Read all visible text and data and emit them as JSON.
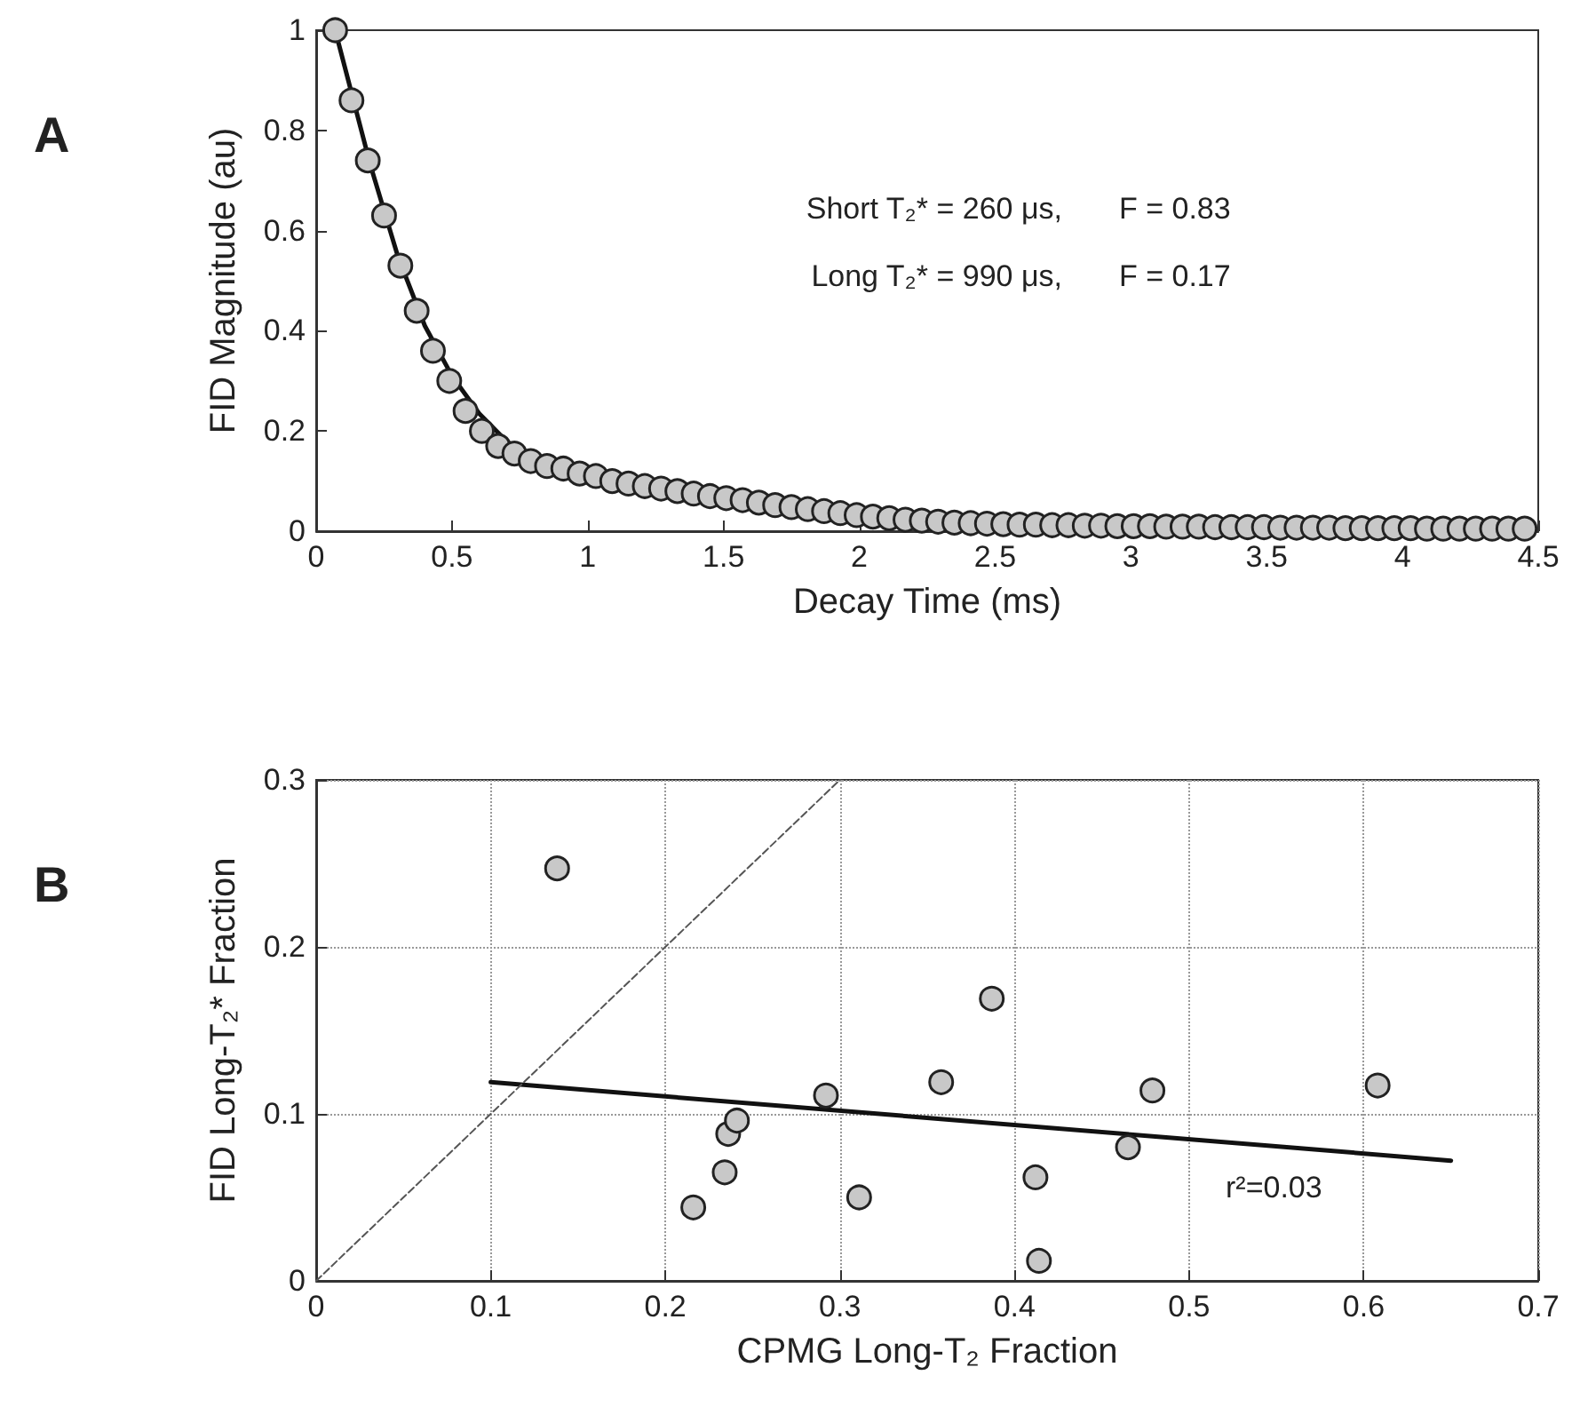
{
  "chart_data": [
    {
      "type": "scatter",
      "title": "A",
      "xlabel": "Decay Time (ms)",
      "ylabel": "FID Magnitude (au)",
      "xlim": [
        0,
        4.5
      ],
      "ylim": [
        0,
        1
      ],
      "xticks": [
        0,
        0.5,
        1,
        1.5,
        2,
        2.5,
        3,
        3.5,
        4,
        4.5
      ],
      "yticks": [
        0,
        0.2,
        0.4,
        0.6,
        0.8,
        1
      ],
      "grid": false,
      "annotations": [
        "Short T₂* = 260 μs,",
        "F = 0.83",
        "Long T₂* = 990 μs,",
        "F = 0.17"
      ],
      "series": [
        {
          "marker": "circle",
          "color": "#c8c8c8",
          "x": [
            0.07,
            0.13,
            0.19,
            0.25,
            0.31,
            0.37,
            0.43,
            0.49,
            0.55,
            0.61,
            0.67,
            0.73,
            0.79,
            0.85,
            0.91,
            0.97,
            1.03,
            1.09,
            1.15,
            1.21,
            1.27,
            1.33,
            1.39,
            1.45,
            1.51,
            1.57,
            1.63,
            1.69,
            1.75,
            1.81,
            1.87,
            1.93,
            1.99,
            2.05,
            2.11,
            2.17,
            2.23,
            2.29,
            2.35,
            2.41,
            2.47,
            2.53,
            2.59,
            2.65,
            2.71,
            2.77,
            2.83,
            2.89,
            2.95,
            3.01,
            3.07,
            3.13,
            3.19,
            3.25,
            3.31,
            3.37,
            3.43,
            3.49,
            3.55,
            3.61,
            3.67,
            3.73,
            3.79,
            3.85,
            3.91,
            3.97,
            4.03,
            4.09,
            4.15,
            4.21,
            4.27,
            4.33,
            4.39,
            4.45
          ],
          "values": [
            1.0,
            0.86,
            0.74,
            0.63,
            0.53,
            0.44,
            0.36,
            0.3,
            0.24,
            0.2,
            0.17,
            0.155,
            0.14,
            0.13,
            0.125,
            0.115,
            0.11,
            0.1,
            0.095,
            0.09,
            0.085,
            0.08,
            0.075,
            0.07,
            0.066,
            0.062,
            0.057,
            0.052,
            0.048,
            0.044,
            0.04,
            0.036,
            0.032,
            0.029,
            0.026,
            0.023,
            0.021,
            0.019,
            0.017,
            0.016,
            0.015,
            0.014,
            0.013,
            0.013,
            0.012,
            0.012,
            0.011,
            0.011,
            0.01,
            0.01,
            0.01,
            0.009,
            0.009,
            0.009,
            0.008,
            0.008,
            0.008,
            0.008,
            0.007,
            0.007,
            0.007,
            0.007,
            0.006,
            0.006,
            0.006,
            0.006,
            0.006,
            0.005,
            0.005,
            0.005,
            0.005,
            0.005,
            0.005,
            0.005
          ]
        },
        {
          "type": "line",
          "marker": "none",
          "color": "#111111",
          "line_style": "solid",
          "x": [
            0.07,
            0.2,
            0.3,
            0.4,
            0.5,
            0.6,
            0.7,
            0.8,
            0.9,
            1.0,
            1.2,
            1.5,
            2.0,
            2.5,
            3.0,
            3.5,
            4.0,
            4.45
          ],
          "values": [
            1.0,
            0.73,
            0.55,
            0.41,
            0.31,
            0.235,
            0.18,
            0.145,
            0.125,
            0.11,
            0.09,
            0.065,
            0.035,
            0.02,
            0.012,
            0.008,
            0.005,
            0.004
          ]
        }
      ]
    },
    {
      "type": "scatter",
      "title": "B",
      "xlabel": "CPMG Long-T₂ Fraction",
      "ylabel": "FID Long-T₂* Fraction",
      "xlim": [
        0,
        0.7
      ],
      "ylim": [
        0,
        0.3
      ],
      "xticks": [
        0,
        0.1,
        0.2,
        0.3,
        0.4,
        0.5,
        0.6,
        0.7
      ],
      "yticks": [
        0,
        0.1,
        0.2,
        0.3
      ],
      "grid": true,
      "annotations": [
        "r²=0.03"
      ],
      "series": [
        {
          "marker": "circle",
          "color": "#c8c8c8",
          "x": [
            0.138,
            0.216,
            0.234,
            0.236,
            0.241,
            0.292,
            0.311,
            0.358,
            0.387,
            0.412,
            0.414,
            0.465,
            0.479,
            0.608
          ],
          "values": [
            0.247,
            0.044,
            0.065,
            0.088,
            0.096,
            0.111,
            0.05,
            0.119,
            0.169,
            0.062,
            0.012,
            0.08,
            0.114,
            0.117
          ]
        },
        {
          "type": "line",
          "marker": "none",
          "color": "#111111",
          "line_style": "solid",
          "x": [
            0.1,
            0.65
          ],
          "values": [
            0.119,
            0.072
          ]
        },
        {
          "type": "line",
          "marker": "none",
          "color": "#555555",
          "line_style": "dashed",
          "x": [
            0,
            0.3
          ],
          "values": [
            0,
            0.3
          ]
        }
      ]
    }
  ]
}
